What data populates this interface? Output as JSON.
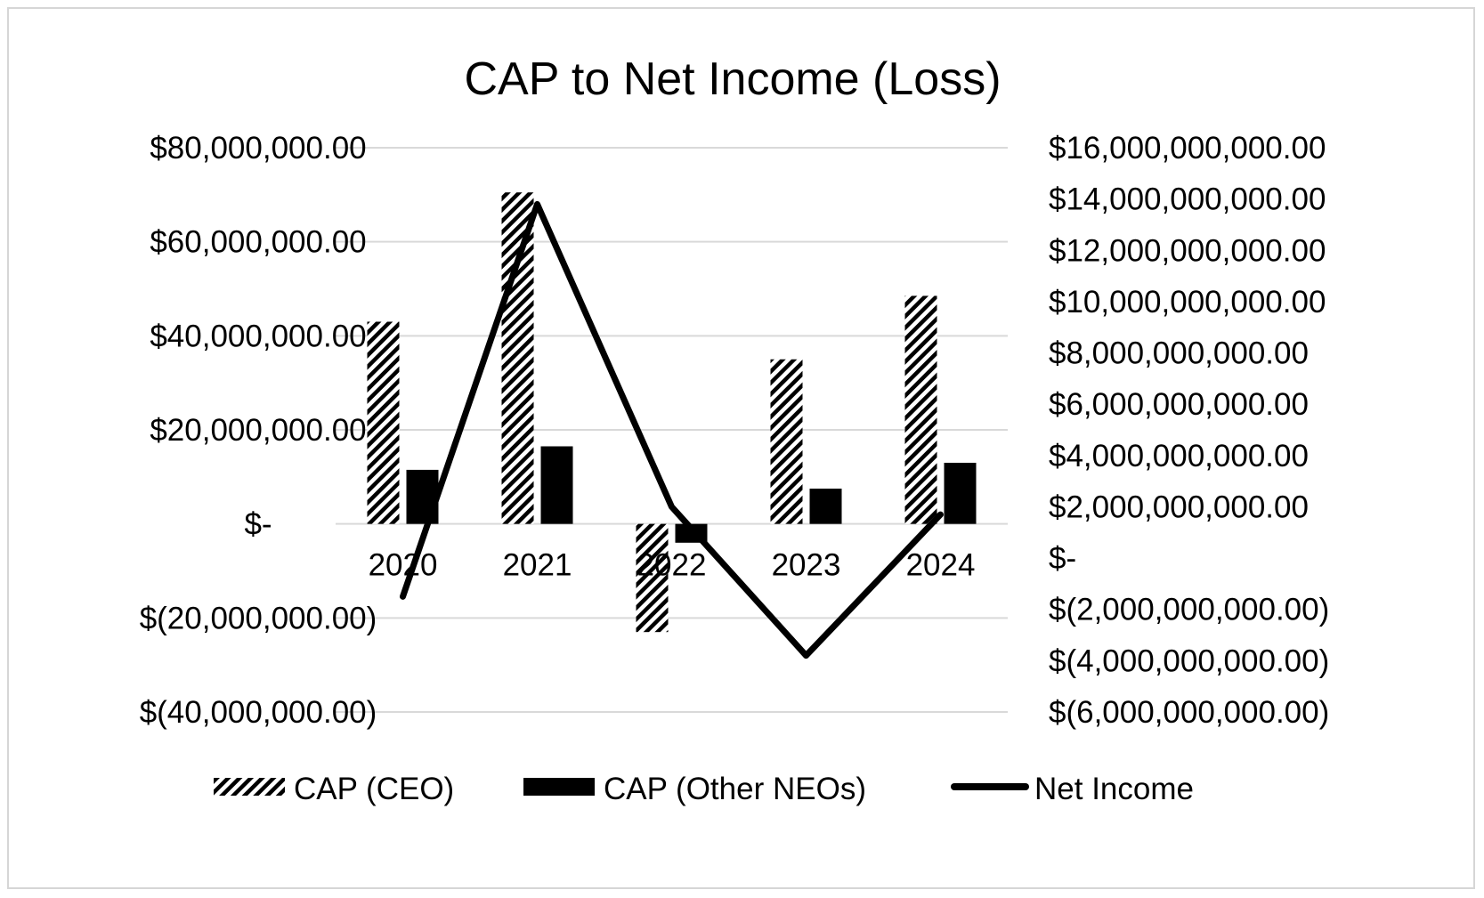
{
  "chart_data": {
    "type": "bar+line",
    "title": "CAP to Net Income (Loss)",
    "categories": [
      "2020",
      "2021",
      "2022",
      "2023",
      "2024"
    ],
    "series": [
      {
        "name": "CAP (CEO)",
        "type": "bar",
        "axis": "left",
        "pattern": "diagonal-hatch",
        "values": [
          43000000,
          70500000,
          -23000000,
          35000000,
          48500000
        ]
      },
      {
        "name": "CAP (Other NEOs)",
        "type": "bar",
        "axis": "left",
        "color": "#000000",
        "values": [
          11500000,
          16500000,
          -4000000,
          7500000,
          13000000
        ]
      },
      {
        "name": "Net Income",
        "type": "line",
        "axis": "right",
        "color": "#000000",
        "values": [
          -1500000000,
          13800000000,
          2000000000,
          -3800000000,
          1700000000
        ]
      }
    ],
    "left_axis": {
      "ylim": [
        -40000000,
        80000000
      ],
      "ticks": [
        80000000,
        60000000,
        40000000,
        20000000,
        0,
        -20000000,
        -40000000
      ],
      "tick_labels": [
        "$80,000,000.00",
        "$60,000,000.00",
        "$40,000,000.00",
        "$20,000,000.00",
        "$-",
        "$(20,000,000.00)",
        "$(40,000,000.00)"
      ]
    },
    "right_axis": {
      "ylim": [
        -6000000000,
        16000000000
      ],
      "ticks": [
        16000000000,
        14000000000,
        12000000000,
        10000000000,
        8000000000,
        6000000000,
        4000000000,
        2000000000,
        0,
        -2000000000,
        -4000000000,
        -6000000000
      ],
      "tick_labels": [
        "$16,000,000,000.00",
        "$14,000,000,000.00",
        "$12,000,000,000.00",
        "$10,000,000,000.00",
        "$8,000,000,000.00",
        "$6,000,000,000.00",
        "$4,000,000,000.00",
        "$2,000,000,000.00",
        "$-",
        "$(2,000,000,000.00)",
        "$(4,000,000,000.00)",
        "$(6,000,000,000.00)"
      ]
    },
    "grid": true,
    "legend": "bottom"
  }
}
